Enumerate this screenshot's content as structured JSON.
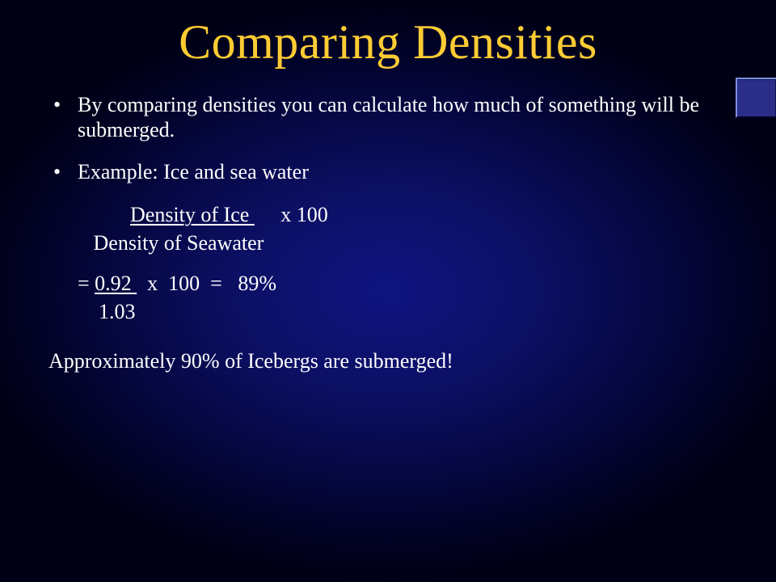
{
  "title": "Comparing Densities",
  "bullet1": "By comparing densities you can calculate how much of something will be submerged.",
  "bullet2": "Example:  Ice and sea water",
  "formula_top_lead": "          ",
  "formula_top_underlined": "Density of Ice ",
  "formula_top_tail": "     x 100",
  "formula_bottom": "   Density of Seawater",
  "calc_prefix": "= ",
  "calc_top_underlined": "0.92 ",
  "calc_tail": "  x  100  =   89%",
  "calc_bottom": "    1.03",
  "conclusion": "Approximately 90% of Icebergs are submerged!",
  "colors": {
    "title": "#ffcc33",
    "text": "#ffffff",
    "bg_center": "#0e1380",
    "bg_edge": "#000014"
  }
}
